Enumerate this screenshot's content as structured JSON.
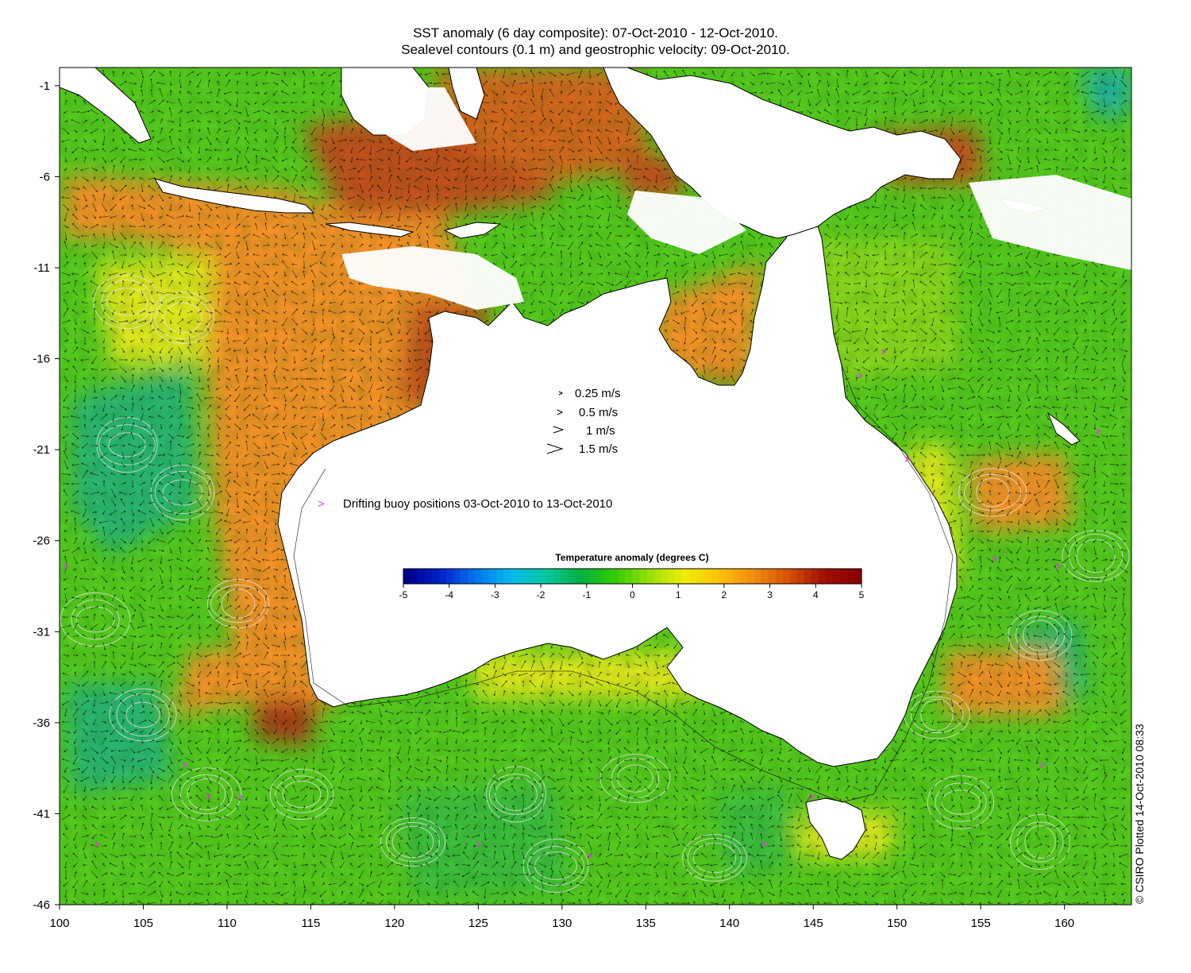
{
  "title": {
    "line1": "SST anomaly (6 day composite): 07-Oct-2010 - 12-Oct-2010.",
    "line2": "Sealevel contours (0.1 m) and geostrophic velocity: 09-Oct-2010."
  },
  "axes": {
    "x_ticks": [
      "100",
      "105",
      "110",
      "115",
      "120",
      "125",
      "130",
      "135",
      "140",
      "145",
      "150",
      "155",
      "160"
    ],
    "y_ticks": [
      "-1",
      "-6",
      "-11",
      "-16",
      "-21",
      "-26",
      "-31",
      "-36",
      "-41",
      "-46"
    ],
    "lon_range": [
      100,
      164
    ],
    "lat_range": [
      -46,
      0
    ]
  },
  "velocity_legend": [
    {
      "label": "0.25 m/s",
      "speed": 0.25
    },
    {
      "label": "0.5 m/s",
      "speed": 0.5
    },
    {
      "label": "1 m/s",
      "speed": 1
    },
    {
      "label": "1.5 m/s",
      "speed": 1.5
    }
  ],
  "buoy_legend": {
    "symbol": ">",
    "label": "Drifting buoy positions 03-Oct-2010 to 13-Oct-2010",
    "color": "#e040e0"
  },
  "colorbar": {
    "title": "Temperature anomaly (degrees C)",
    "ticks": [
      "-5",
      "-4",
      "-3",
      "-2",
      "-1",
      "0",
      "1",
      "2",
      "3",
      "4",
      "5"
    ],
    "range": [
      -5,
      5
    ],
    "colors": [
      "#00008b",
      "#0022cc",
      "#0077ee",
      "#00bbee",
      "#00c8a0",
      "#00b040",
      "#33cc00",
      "#99e000",
      "#eeee00",
      "#ffc000",
      "#f08c10",
      "#d85000",
      "#a01000",
      "#8b0000"
    ]
  },
  "credit": "© CSIRO Plotted 14-Oct-2010 08:33",
  "colors": {
    "ocean_green": "#55c81e",
    "warm_yellow": "#dde61c",
    "warm_orange": "#f09028",
    "hot_red": "#c0501a",
    "cool_teal": "#2ab470",
    "land": "#ffffff",
    "contour": "#e8e8e8",
    "arrow": "#000000"
  }
}
